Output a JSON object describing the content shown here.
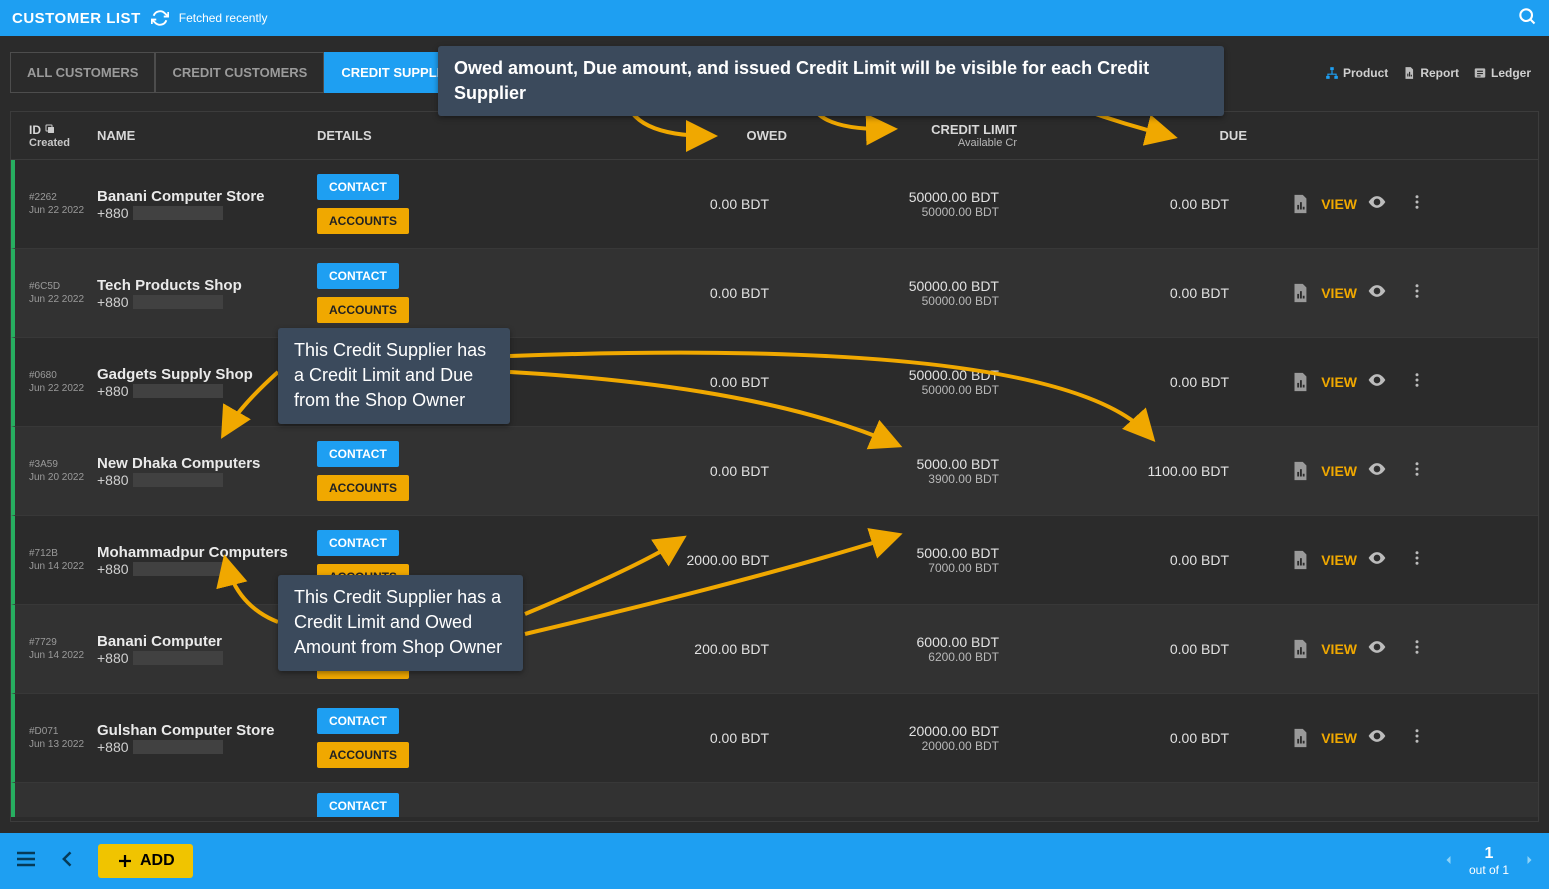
{
  "colors": {
    "primary": "#1e9ff2",
    "accent": "#f0a800",
    "add": "#f0c400",
    "rowstripe": "#323232",
    "bg": "#2b2b2b",
    "border": "#3c3c3c",
    "green": "#27ae60",
    "annot_bg": "#3b4a5c",
    "text": "#e0e0e0",
    "arrow": "#f0a800"
  },
  "topbar": {
    "title": "CUSTOMER LIST",
    "fetched": "Fetched recently"
  },
  "tabs": [
    {
      "label": "ALL CUSTOMERS",
      "active": false
    },
    {
      "label": "CREDIT CUSTOMERS",
      "active": false
    },
    {
      "label": "CREDIT SUPPLIERS",
      "active": true
    }
  ],
  "toolbar_links": [
    {
      "label": "Product",
      "icon": "sitemap-icon"
    },
    {
      "label": "Report",
      "icon": "report-icon"
    },
    {
      "label": "Ledger",
      "icon": "ledger-icon"
    }
  ],
  "columns": {
    "id": "ID",
    "created": "Created",
    "name": "NAME",
    "details": "DETAILS",
    "owed": "OWED",
    "credit_limit": "CREDIT LIMIT",
    "available": "Available Cr",
    "due": "DUE"
  },
  "buttons": {
    "contact": "CONTACT",
    "accounts": "ACCOUNTS",
    "view": "VIEW",
    "add": "ADD"
  },
  "rows": [
    {
      "id": "#2262",
      "created": "Jun 22 2022",
      "name": "Banani Computer Store",
      "phone": "+880",
      "owed": "0.00 BDT",
      "limit": "50000.00 BDT",
      "available": "50000.00 BDT",
      "due": "0.00 BDT"
    },
    {
      "id": "#6C5D",
      "created": "Jun 22 2022",
      "name": "Tech Products Shop",
      "phone": "+880",
      "owed": "0.00 BDT",
      "limit": "50000.00 BDT",
      "available": "50000.00 BDT",
      "due": "0.00 BDT"
    },
    {
      "id": "#0680",
      "created": "Jun 22 2022",
      "name": "Gadgets Supply Shop",
      "phone": "+880",
      "owed": "0.00 BDT",
      "limit": "50000.00 BDT",
      "available": "50000.00 BDT",
      "due": "0.00 BDT"
    },
    {
      "id": "#3A59",
      "created": "Jun 20 2022",
      "name": "New Dhaka Computers",
      "phone": "+880",
      "owed": "0.00 BDT",
      "limit": "5000.00 BDT",
      "available": "3900.00 BDT",
      "due": "1100.00 BDT"
    },
    {
      "id": "#712B",
      "created": "Jun 14 2022",
      "name": "Mohammadpur Computers",
      "phone": "+880",
      "owed": "2000.00 BDT",
      "limit": "5000.00 BDT",
      "available": "7000.00 BDT",
      "due": "0.00 BDT"
    },
    {
      "id": "#7729",
      "created": "Jun 14 2022",
      "name": "Banani Computer",
      "phone": "+880",
      "owed": "200.00 BDT",
      "limit": "6000.00 BDT",
      "available": "6200.00 BDT",
      "due": "0.00 BDT"
    },
    {
      "id": "#D071",
      "created": "Jun 13 2022",
      "name": "Gulshan Computer Store",
      "phone": "+880",
      "owed": "0.00 BDT",
      "limit": "20000.00 BDT",
      "available": "20000.00 BDT",
      "due": "0.00 BDT"
    }
  ],
  "annotations": {
    "top": "Owed amount, Due amount, and issued Credit Limit will be visible for each Credit Supplier",
    "mid": "This Credit Supplier has a Credit Limit and Due from the Shop Owner",
    "low": "This Credit Supplier has a Credit Limit and Owed Amount from Shop Owner"
  },
  "annotation_arrows": {
    "color": "#f0a800",
    "stroke_width": 4,
    "arrowhead": "filled-triangle",
    "arrows": [
      {
        "from": "top-annot",
        "to_column": "OWED"
      },
      {
        "from": "top-annot",
        "to_column": "CREDIT LIMIT"
      },
      {
        "from": "top-annot",
        "to_column": "DUE"
      },
      {
        "from": "mid-annot",
        "to_row": 3,
        "to_field": "name"
      },
      {
        "from": "mid-annot",
        "to_row": 3,
        "to_field": "limit"
      },
      {
        "from": "mid-annot",
        "to_row": 3,
        "to_field": "due"
      },
      {
        "from": "low-annot",
        "to_row": 4,
        "to_field": "name"
      },
      {
        "from": "low-annot",
        "to_row": 4,
        "to_field": "owed"
      },
      {
        "from": "low-annot",
        "to_row": 4,
        "to_field": "limit"
      }
    ]
  },
  "pager": {
    "page": "1",
    "of": "out of 1"
  }
}
